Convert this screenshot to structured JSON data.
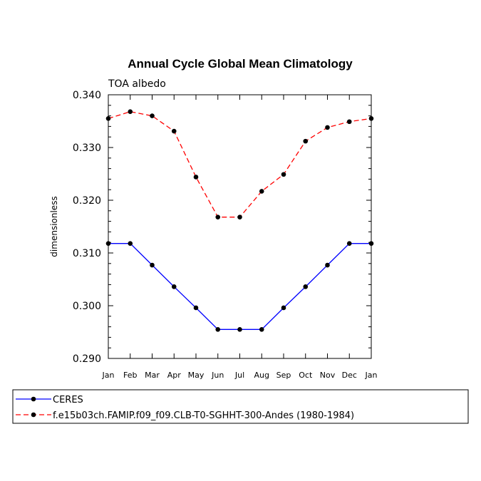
{
  "chart_data": {
    "type": "line",
    "title": "Annual Cycle Global Mean Climatology",
    "subtitle": "TOA albedo",
    "xlabel": "",
    "ylabel": "dimensionless",
    "categories": [
      "Jan",
      "Feb",
      "Mar",
      "Apr",
      "May",
      "Jun",
      "Jul",
      "Aug",
      "Sep",
      "Oct",
      "Nov",
      "Dec",
      "Jan"
    ],
    "ylim": [
      0.29,
      0.34
    ],
    "yticks": [
      "0.290",
      "0.300",
      "0.310",
      "0.320",
      "0.330",
      "0.340"
    ],
    "grid": false,
    "legend_position": "bottom",
    "series": [
      {
        "name": "CERES",
        "color": "#0000ff",
        "line_style": "solid",
        "values": [
          0.3118,
          0.3118,
          0.3077,
          0.3036,
          0.2996,
          0.2955,
          0.2955,
          0.2955,
          0.2996,
          0.3036,
          0.3077,
          0.3118,
          0.3118
        ]
      },
      {
        "name": "f.e15b03ch.FAMIP.f09_f09.CLB-T0-SGHHT-300-Andes (1980-1984)",
        "color": "#ff0000",
        "line_style": "dashed",
        "values": [
          0.3355,
          0.3368,
          0.336,
          0.3331,
          0.3244,
          0.3168,
          0.3168,
          0.3217,
          0.3249,
          0.3312,
          0.3338,
          0.3349,
          0.3355
        ]
      }
    ]
  }
}
